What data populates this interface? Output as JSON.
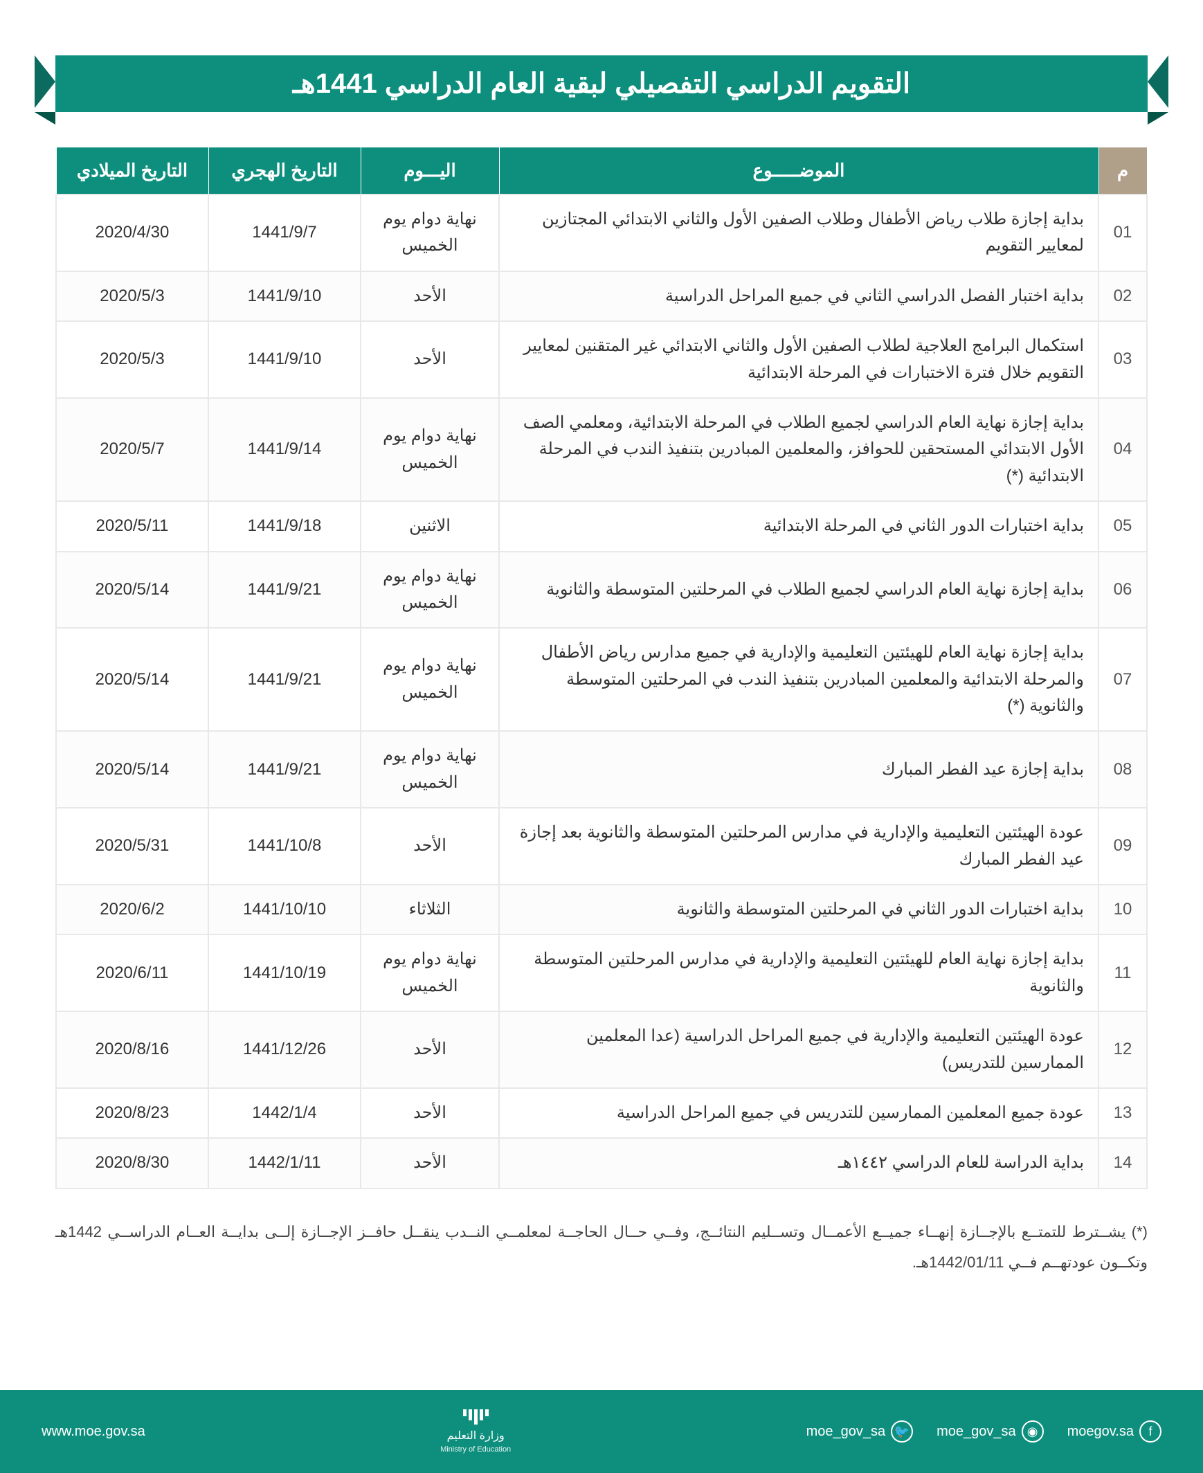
{
  "title": "التقويم الدراسي التفصيلي لبقية العام الدراسي  1441هـ",
  "colors": {
    "primary": "#0e8f7e",
    "primary_dark": "#0a6b5e",
    "idx_header": "#b0a08a",
    "text": "#333333",
    "border": "#e8e8e8",
    "white": "#ffffff"
  },
  "table": {
    "headers": {
      "idx": "م",
      "subject": "الموضـــــوع",
      "day": "اليـــوم",
      "hijri": "التاريخ الهجري",
      "gregorian": "التاريخ الميلادي"
    },
    "rows": [
      {
        "idx": "01",
        "subject": "بداية إجازة طلاب رياض الأطفال وطلاب الصفين الأول والثاني الابتدائي المجتازين لمعايير التقويم",
        "day": "نهاية دوام يوم الخميس",
        "hijri": "1441/9/7",
        "gregorian": "2020/4/30"
      },
      {
        "idx": "02",
        "subject": "بداية اختبار الفصل الدراسي الثاني في جميع المراحل الدراسية",
        "day": "الأحد",
        "hijri": "1441/9/10",
        "gregorian": "2020/5/3"
      },
      {
        "idx": "03",
        "subject": "استكمال البرامج العلاجية لطلاب الصفين الأول والثاني الابتدائي غير المتقنين لمعايير التقويم خلال فترة الاختبارات في المرحلة الابتدائية",
        "day": "الأحد",
        "hijri": "1441/9/10",
        "gregorian": "2020/5/3"
      },
      {
        "idx": "04",
        "subject": "بداية إجازة نهاية العام الدراسي لجميع الطلاب في المرحلة الابتدائية، ومعلمي الصف الأول الابتدائي المستحقين للحوافز، والمعلمين المبادرين بتنفيذ الندب في المرحلة الابتدائية (*)",
        "day": "نهاية دوام يوم الخميس",
        "hijri": "1441/9/14",
        "gregorian": "2020/5/7"
      },
      {
        "idx": "05",
        "subject": "بداية اختبارات الدور الثاني في المرحلة الابتدائية",
        "day": "الاثنين",
        "hijri": "1441/9/18",
        "gregorian": "2020/5/11"
      },
      {
        "idx": "06",
        "subject": "بداية إجازة نهاية العام الدراسي لجميع الطلاب في المرحلتين المتوسطة والثانوية",
        "day": "نهاية دوام يوم الخميس",
        "hijri": "1441/9/21",
        "gregorian": "2020/5/14"
      },
      {
        "idx": "07",
        "subject": "بداية إجازة نهاية العام للهيئتين التعليمية والإدارية في جميع مدارس رياض الأطفال والمرحلة الابتدائية  والمعلمين المبادرين بتنفيذ الندب في المرحلتين المتوسطة والثانوية  (*)",
        "day": "نهاية دوام يوم الخميس",
        "hijri": "1441/9/21",
        "gregorian": "2020/5/14"
      },
      {
        "idx": "08",
        "subject": "بداية إجازة عيد الفطر المبارك",
        "day": "نهاية دوام يوم الخميس",
        "hijri": "1441/9/21",
        "gregorian": "2020/5/14"
      },
      {
        "idx": "09",
        "subject": "عودة الهيئتين التعليمية والإدارية في مدارس المرحلتين المتوسطة والثانوية بعد إجازة عيد الفطر المبارك",
        "day": "الأحد",
        "hijri": "1441/10/8",
        "gregorian": "2020/5/31"
      },
      {
        "idx": "10",
        "subject": "بداية اختبارات الدور الثاني في المرحلتين المتوسطة والثانوية",
        "day": "الثلاثاء",
        "hijri": "1441/10/10",
        "gregorian": "2020/6/2"
      },
      {
        "idx": "11",
        "subject": "بداية إجازة نهاية العام للهيئتين التعليمية والإدارية في مدارس المرحلتين المتوسطة والثانوية",
        "day": "نهاية دوام يوم الخميس",
        "hijri": "1441/10/19",
        "gregorian": "2020/6/11"
      },
      {
        "idx": "12",
        "subject": "عودة الهيئتين التعليمية والإدارية في جميع المراحل الدراسية (عدا المعلمين الممارسين للتدريس)",
        "day": "الأحد",
        "hijri": "1441/12/26",
        "gregorian": "2020/8/16"
      },
      {
        "idx": "13",
        "subject": "عودة جميع المعلمين الممارسين للتدريس في جميع المراحل الدراسية",
        "day": "الأحد",
        "hijri": "1442/1/4",
        "gregorian": "2020/8/23"
      },
      {
        "idx": "14",
        "subject": "بداية الدراسة للعام الدراسي ١٤٤٢هـ",
        "day": "الأحد",
        "hijri": "1442/1/11",
        "gregorian": "2020/8/30"
      }
    ]
  },
  "footnote": "(*) يشــترط للتمتــع بالإجــازة إنهــاء جميــع الأعمــال وتســليم النتائــج، وفــي حــال الحاجــة لمعلمــي النــدب ينقــل حافــز الإجــازة إلــى بدايــة العــام الدراســي 1442هـ  وتكــون عودتهــم فــي 1442/01/11هـ.",
  "footer": {
    "socials": [
      {
        "icon": "f",
        "handle": "moegov.sa",
        "name": "facebook"
      },
      {
        "icon": "◉",
        "handle": "moe_gov_sa",
        "name": "instagram"
      },
      {
        "icon": "🐦",
        "handle": "moe_gov_sa",
        "name": "twitter"
      }
    ],
    "ministry_ar": "وزارة التعليم",
    "ministry_en": "Ministry of Education",
    "website": "www.moe.gov.sa"
  }
}
